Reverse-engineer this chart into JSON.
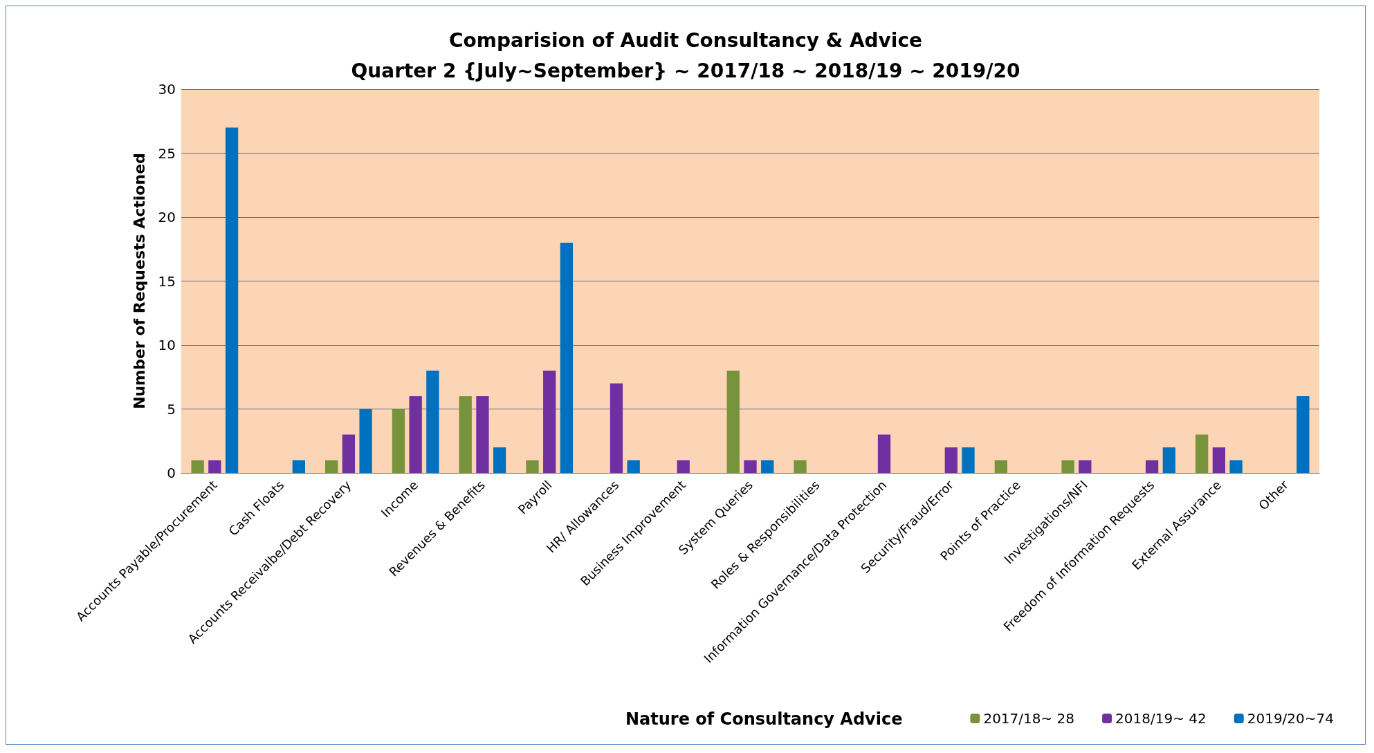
{
  "chart_data": {
    "type": "bar",
    "title": "Comparision of Audit Consultancy & Advice\nQuarter 2 {July~September} ~ 2017/18 ~ 2018/19 ~ 2019/20",
    "xlabel": "Nature of Consultancy Advice",
    "ylabel": "Number of Requests Actioned",
    "categories": [
      "Accounts Payable/Procurement",
      "Cash Floats",
      "Accounts Receivalbe/Debt Recovery",
      "Income",
      "Revenues & Benefits",
      "Payroll",
      "HR/ Allowances",
      "Business Improvement",
      "System Queries",
      "Roles & Responsibilities",
      "Information Governance/Data Protection",
      "Security/Fraud/Error",
      "Points of Practice",
      "Investigations/NFI",
      "Freedom of Information Requests",
      "External Assurance",
      "Other"
    ],
    "series": [
      {
        "name": "2017/18~ 28",
        "color": "#77933c",
        "values": [
          1,
          0,
          1,
          5,
          6,
          1,
          0,
          0,
          8,
          1,
          0,
          0,
          1,
          1,
          0,
          3,
          0
        ]
      },
      {
        "name": "2018/19~ 42",
        "color": "#7030a0",
        "values": [
          1,
          0,
          3,
          6,
          6,
          8,
          7,
          1,
          1,
          0,
          3,
          2,
          0,
          1,
          1,
          2,
          0
        ]
      },
      {
        "name": "2019/20~74",
        "color": "#0070c0",
        "values": [
          27,
          1,
          5,
          8,
          2,
          18,
          1,
          0,
          1,
          0,
          0,
          2,
          0,
          0,
          2,
          1,
          6
        ]
      }
    ],
    "ylim": [
      0,
      30
    ],
    "yticks": [
      0,
      5,
      10,
      15,
      20,
      25,
      30
    ],
    "grid": "y",
    "legend": "bottom right"
  }
}
